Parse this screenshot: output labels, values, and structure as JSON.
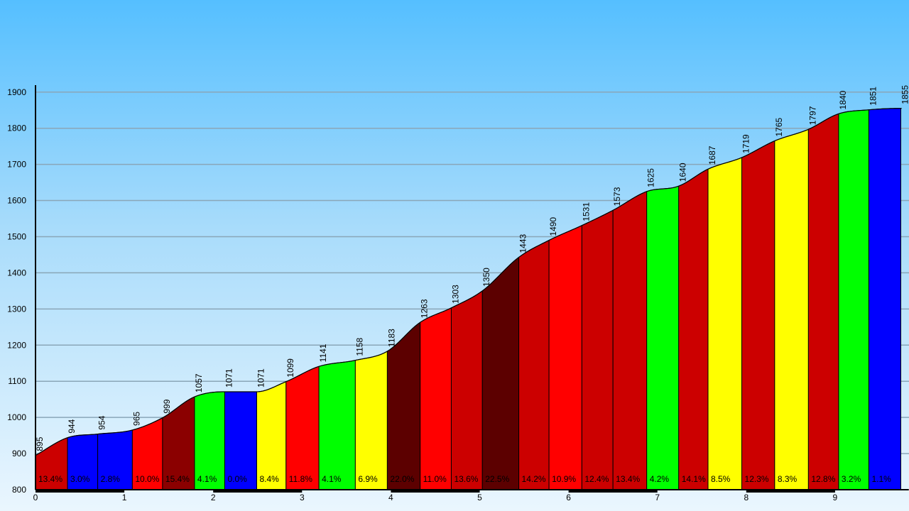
{
  "chart_data": {
    "type": "area",
    "y_range": [
      800,
      1900
    ],
    "x_range": [
      0,
      9.75
    ],
    "y_ticks": [
      "800",
      "900",
      "1000",
      "1100",
      "1200",
      "1300",
      "1400",
      "1500",
      "1600",
      "1700",
      "1800",
      "1900"
    ],
    "x_ticks": [
      "0",
      "1",
      "2",
      "3",
      "4",
      "5",
      "6",
      "7",
      "8",
      "9"
    ],
    "grid": true,
    "colors": {
      "blue": "#0000ff",
      "red": "#ff0000",
      "dark_red": "#8b0000",
      "green": "#00ff00",
      "yellow": "#ffff00",
      "crimson": "#cc0000",
      "maroon": "#5c0000"
    },
    "segments": [
      {
        "x0": 0.0,
        "x1": 0.36,
        "grade": "13.4%",
        "color": "crimson"
      },
      {
        "x0": 0.36,
        "x1": 0.7,
        "grade": "3.0%",
        "color": "blue"
      },
      {
        "x0": 0.7,
        "x1": 1.09,
        "grade": "2.8%",
        "color": "blue"
      },
      {
        "x0": 1.09,
        "x1": 1.43,
        "grade": "10.0%",
        "color": "red"
      },
      {
        "x0": 1.43,
        "x1": 1.79,
        "grade": "15.4%",
        "color": "dark_red"
      },
      {
        "x0": 1.79,
        "x1": 2.13,
        "grade": "4.1%",
        "color": "green"
      },
      {
        "x0": 2.13,
        "x1": 2.49,
        "grade": "0.0%",
        "color": "blue"
      },
      {
        "x0": 2.49,
        "x1": 2.82,
        "grade": "8.4%",
        "color": "yellow"
      },
      {
        "x0": 2.82,
        "x1": 3.19,
        "grade": "11.8%",
        "color": "red"
      },
      {
        "x0": 3.19,
        "x1": 3.6,
        "grade": "4.1%",
        "color": "green"
      },
      {
        "x0": 3.6,
        "x1": 3.96,
        "grade": "6.9%",
        "color": "yellow"
      },
      {
        "x0": 3.96,
        "x1": 4.33,
        "grade": "22.0%",
        "color": "maroon"
      },
      {
        "x0": 4.33,
        "x1": 4.68,
        "grade": "11.0%",
        "color": "red"
      },
      {
        "x0": 4.68,
        "x1": 5.03,
        "grade": "13.6%",
        "color": "crimson"
      },
      {
        "x0": 5.03,
        "x1": 5.44,
        "grade": "22.5%",
        "color": "maroon"
      },
      {
        "x0": 5.44,
        "x1": 5.78,
        "grade": "14.2%",
        "color": "crimson"
      },
      {
        "x0": 5.78,
        "x1": 6.15,
        "grade": "10.9%",
        "color": "red"
      },
      {
        "x0": 6.15,
        "x1": 6.5,
        "grade": "12.4%",
        "color": "crimson"
      },
      {
        "x0": 6.5,
        "x1": 6.88,
        "grade": "13.4%",
        "color": "crimson"
      },
      {
        "x0": 6.88,
        "x1": 7.24,
        "grade": "4.2%",
        "color": "green"
      },
      {
        "x0": 7.24,
        "x1": 7.57,
        "grade": "14.1%",
        "color": "crimson"
      },
      {
        "x0": 7.57,
        "x1": 7.95,
        "grade": "8.5%",
        "color": "yellow"
      },
      {
        "x0": 7.95,
        "x1": 8.32,
        "grade": "12.3%",
        "color": "crimson"
      },
      {
        "x0": 8.32,
        "x1": 8.7,
        "grade": "8.3%",
        "color": "yellow"
      },
      {
        "x0": 8.7,
        "x1": 9.04,
        "grade": "12.8%",
        "color": "crimson"
      },
      {
        "x0": 9.04,
        "x1": 9.38,
        "grade": "3.2%",
        "color": "green"
      },
      {
        "x0": 9.38,
        "x1": 9.74,
        "grade": "1.1%",
        "color": "blue"
      }
    ],
    "profile": [
      {
        "x": 0.0,
        "y": 895,
        "label": "895"
      },
      {
        "x": 0.36,
        "y": 944,
        "label": "944"
      },
      {
        "x": 0.7,
        "y": 954,
        "label": "954"
      },
      {
        "x": 1.09,
        "y": 965,
        "label": "965"
      },
      {
        "x": 1.43,
        "y": 999,
        "label": "999"
      },
      {
        "x": 1.79,
        "y": 1057,
        "label": "1057"
      },
      {
        "x": 2.13,
        "y": 1071,
        "label": "1071"
      },
      {
        "x": 2.49,
        "y": 1071,
        "label": "1071"
      },
      {
        "x": 2.82,
        "y": 1099,
        "label": "1099"
      },
      {
        "x": 3.19,
        "y": 1141,
        "label": "1141"
      },
      {
        "x": 3.6,
        "y": 1158,
        "label": "1158"
      },
      {
        "x": 3.96,
        "y": 1183,
        "label": "1183"
      },
      {
        "x": 4.33,
        "y": 1263,
        "label": "1263"
      },
      {
        "x": 4.68,
        "y": 1303,
        "label": "1303"
      },
      {
        "x": 5.03,
        "y": 1350,
        "label": "1350"
      },
      {
        "x": 5.44,
        "y": 1443,
        "label": "1443"
      },
      {
        "x": 5.78,
        "y": 1490,
        "label": "1490"
      },
      {
        "x": 6.15,
        "y": 1531,
        "label": "1531"
      },
      {
        "x": 6.5,
        "y": 1573,
        "label": "1573"
      },
      {
        "x": 6.88,
        "y": 1625,
        "label": "1625"
      },
      {
        "x": 7.24,
        "y": 1640,
        "label": "1640"
      },
      {
        "x": 7.57,
        "y": 1687,
        "label": "1687"
      },
      {
        "x": 7.95,
        "y": 1719,
        "label": "1719"
      },
      {
        "x": 8.32,
        "y": 1765,
        "label": "1765"
      },
      {
        "x": 8.7,
        "y": 1797,
        "label": "1797"
      },
      {
        "x": 9.04,
        "y": 1840,
        "label": "1840"
      },
      {
        "x": 9.38,
        "y": 1851,
        "label": "1851"
      },
      {
        "x": 9.74,
        "y": 1855,
        "label": "1855"
      },
      {
        "x": 9.75,
        "y": 1855,
        "label": "1855"
      }
    ],
    "km_bands": [
      [
        0,
        1
      ],
      [
        2,
        3
      ],
      [
        4,
        5
      ],
      [
        6,
        7
      ],
      [
        8,
        9
      ]
    ]
  }
}
